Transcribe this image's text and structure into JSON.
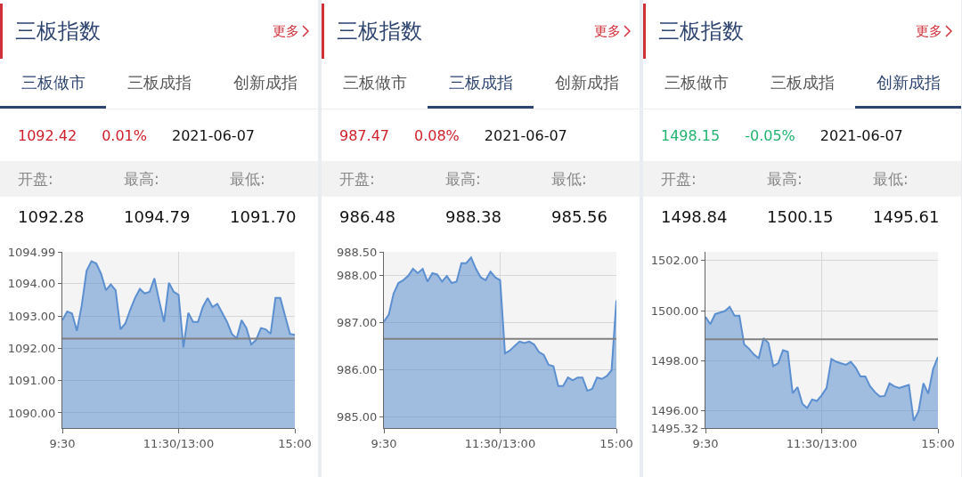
{
  "chart_data": [
    {
      "type": "area",
      "title": "三板指数",
      "annotations": [
        "更多",
        "三板做市",
        "三板成指",
        "创新成指",
        "1092.42",
        "0.01%",
        "2021-06-07",
        "开盘:",
        "最高:",
        "最低:",
        "1092.28",
        "1094.79",
        "1091.70"
      ],
      "categories": [
        "9:30",
        null,
        null,
        null,
        null,
        null,
        null,
        null,
        null,
        null,
        null,
        null,
        null,
        null,
        null,
        null,
        null,
        null,
        null,
        null,
        null,
        null,
        null,
        null,
        "11:30/13:00",
        null,
        null,
        null,
        null,
        null,
        null,
        null,
        null,
        null,
        null,
        null,
        null,
        null,
        null,
        null,
        null,
        null,
        null,
        null,
        null,
        null,
        null,
        null,
        "15:00"
      ],
      "series": [
        {
          "color": "#5b8fd0",
          "values": [
            1092.87,
            1093.14,
            1093.08,
            1092.54,
            1093.33,
            1094.4,
            1094.7,
            1094.63,
            1094.31,
            1093.8,
            1093.98,
            1093.8,
            1092.59,
            1092.77,
            1093.19,
            1093.56,
            1093.84,
            1093.7,
            1093.75,
            1094.17,
            1093.47,
            1092.82,
            1094.03,
            1093.75,
            1093.66,
            1092.03,
            1093.1,
            1092.82,
            1092.82,
            1093.28,
            1093.56,
            1093.28,
            1093.38,
            1093.1,
            1092.82,
            1092.45,
            1092.31,
            1092.87,
            1092.63,
            1092.12,
            1092.26,
            1092.63,
            1092.59,
            1092.45,
            1093.56,
            1093.56,
            1093.0,
            1092.45,
            1092.42
          ]
        }
      ],
      "ylim": [
        1089.53,
        1094.99
      ],
      "yticks": [
        {
          "value": 1090,
          "label": "1090.00"
        },
        {
          "value": 1091,
          "label": "1091.00"
        },
        {
          "value": 1092,
          "label": "1092.00"
        },
        {
          "value": 1093,
          "label": "1093.00"
        },
        {
          "value": 1094,
          "label": "1094.00"
        },
        1094.99
      ],
      "ref_lines": [
        {
          "axis": "y",
          "value": 1092.3,
          "color": "#808080"
        }
      ],
      "grid": true
    },
    {
      "type": "area",
      "title": "三板指数",
      "annotations": [
        "更多",
        "三板做市",
        "三板成指",
        "创新成指",
        "987.47",
        "0.08%",
        "2021-06-07",
        "开盘:",
        "最高:",
        "最低:",
        "986.48",
        "988.38",
        "985.56"
      ],
      "categories": [
        "9:30",
        null,
        null,
        null,
        null,
        null,
        null,
        null,
        null,
        null,
        null,
        null,
        null,
        null,
        null,
        null,
        null,
        null,
        null,
        null,
        null,
        null,
        null,
        null,
        "11:30/13:00",
        null,
        null,
        null,
        null,
        null,
        null,
        null,
        null,
        null,
        null,
        null,
        null,
        null,
        null,
        null,
        null,
        null,
        null,
        null,
        null,
        null,
        null,
        null,
        "15:00"
      ],
      "series": [
        {
          "color": "#5b8fd0",
          "values": [
            987.02,
            987.17,
            987.62,
            987.84,
            987.9,
            987.99,
            988.14,
            988.05,
            988.14,
            987.87,
            988.05,
            988.02,
            987.87,
            987.99,
            987.84,
            987.87,
            988.26,
            988.26,
            988.38,
            988.14,
            987.96,
            987.9,
            988.08,
            987.96,
            987.9,
            986.35,
            986.41,
            986.51,
            986.6,
            986.57,
            986.6,
            986.54,
            986.38,
            986.32,
            986.11,
            986.08,
            985.66,
            985.66,
            985.84,
            985.78,
            985.84,
            985.84,
            985.56,
            985.6,
            985.84,
            985.81,
            985.87,
            985.99,
            987.47
          ]
        }
      ],
      "ylim": [
        984.77,
        988.5
      ],
      "yticks": [
        {
          "value": 985,
          "label": "985.00"
        },
        {
          "value": 986,
          "label": "986.00"
        },
        {
          "value": 987,
          "label": "987.00"
        },
        {
          "value": 988,
          "label": "988.00"
        },
        {
          "value": 988.5,
          "label": "988.50"
        }
      ],
      "ref_lines": [
        {
          "axis": "y",
          "value": 986.66,
          "color": "#808080"
        }
      ],
      "grid": true
    },
    {
      "type": "area",
      "title": "三板指数",
      "annotations": [
        "更多",
        "三板做市",
        "三板成指",
        "创新成指",
        "1498.15",
        "-0.05%",
        "2021-06-07",
        "开盘:",
        "最高:",
        "最低:",
        "1498.84",
        "1500.15",
        "1495.61"
      ],
      "categories": [
        "9:30",
        null,
        null,
        null,
        null,
        null,
        null,
        null,
        null,
        null,
        null,
        null,
        null,
        null,
        null,
        null,
        null,
        null,
        null,
        null,
        null,
        null,
        null,
        null,
        "11:30/13:00",
        null,
        null,
        null,
        null,
        null,
        null,
        null,
        null,
        null,
        null,
        null,
        null,
        null,
        null,
        null,
        null,
        null,
        null,
        null,
        null,
        null,
        null,
        null,
        "15:00"
      ],
      "series": [
        {
          "color": "#5b8fd0",
          "values": [
            1499.75,
            1499.46,
            1499.86,
            1499.92,
            1499.98,
            1500.15,
            1499.8,
            1499.8,
            1498.65,
            1498.48,
            1498.25,
            1498.1,
            1498.9,
            1498.71,
            1497.79,
            1497.9,
            1498.42,
            1498.36,
            1496.71,
            1496.95,
            1496.29,
            1496.12,
            1496.46,
            1496.4,
            1496.63,
            1496.92,
            1498.07,
            1497.96,
            1497.9,
            1497.84,
            1497.96,
            1497.73,
            1497.38,
            1497.38,
            1496.98,
            1496.75,
            1496.58,
            1496.6,
            1497.1,
            1496.98,
            1496.92,
            1496.98,
            1497.04,
            1495.61,
            1496.0,
            1497.1,
            1496.69,
            1497.67,
            1498.15
          ]
        }
      ],
      "ylim": [
        1495.32,
        1502.34
      ],
      "yticks": [
        1495.32,
        {
          "value": 1496,
          "label": "1496.00"
        },
        {
          "value": 1498,
          "label": "1498.00"
        },
        {
          "value": 1500,
          "label": "1500.00"
        },
        {
          "value": 1502,
          "label": "1502.00"
        }
      ],
      "ref_lines": [
        {
          "axis": "y",
          "value": 1498.86,
          "color": "#808080"
        }
      ],
      "grid": true
    }
  ]
}
